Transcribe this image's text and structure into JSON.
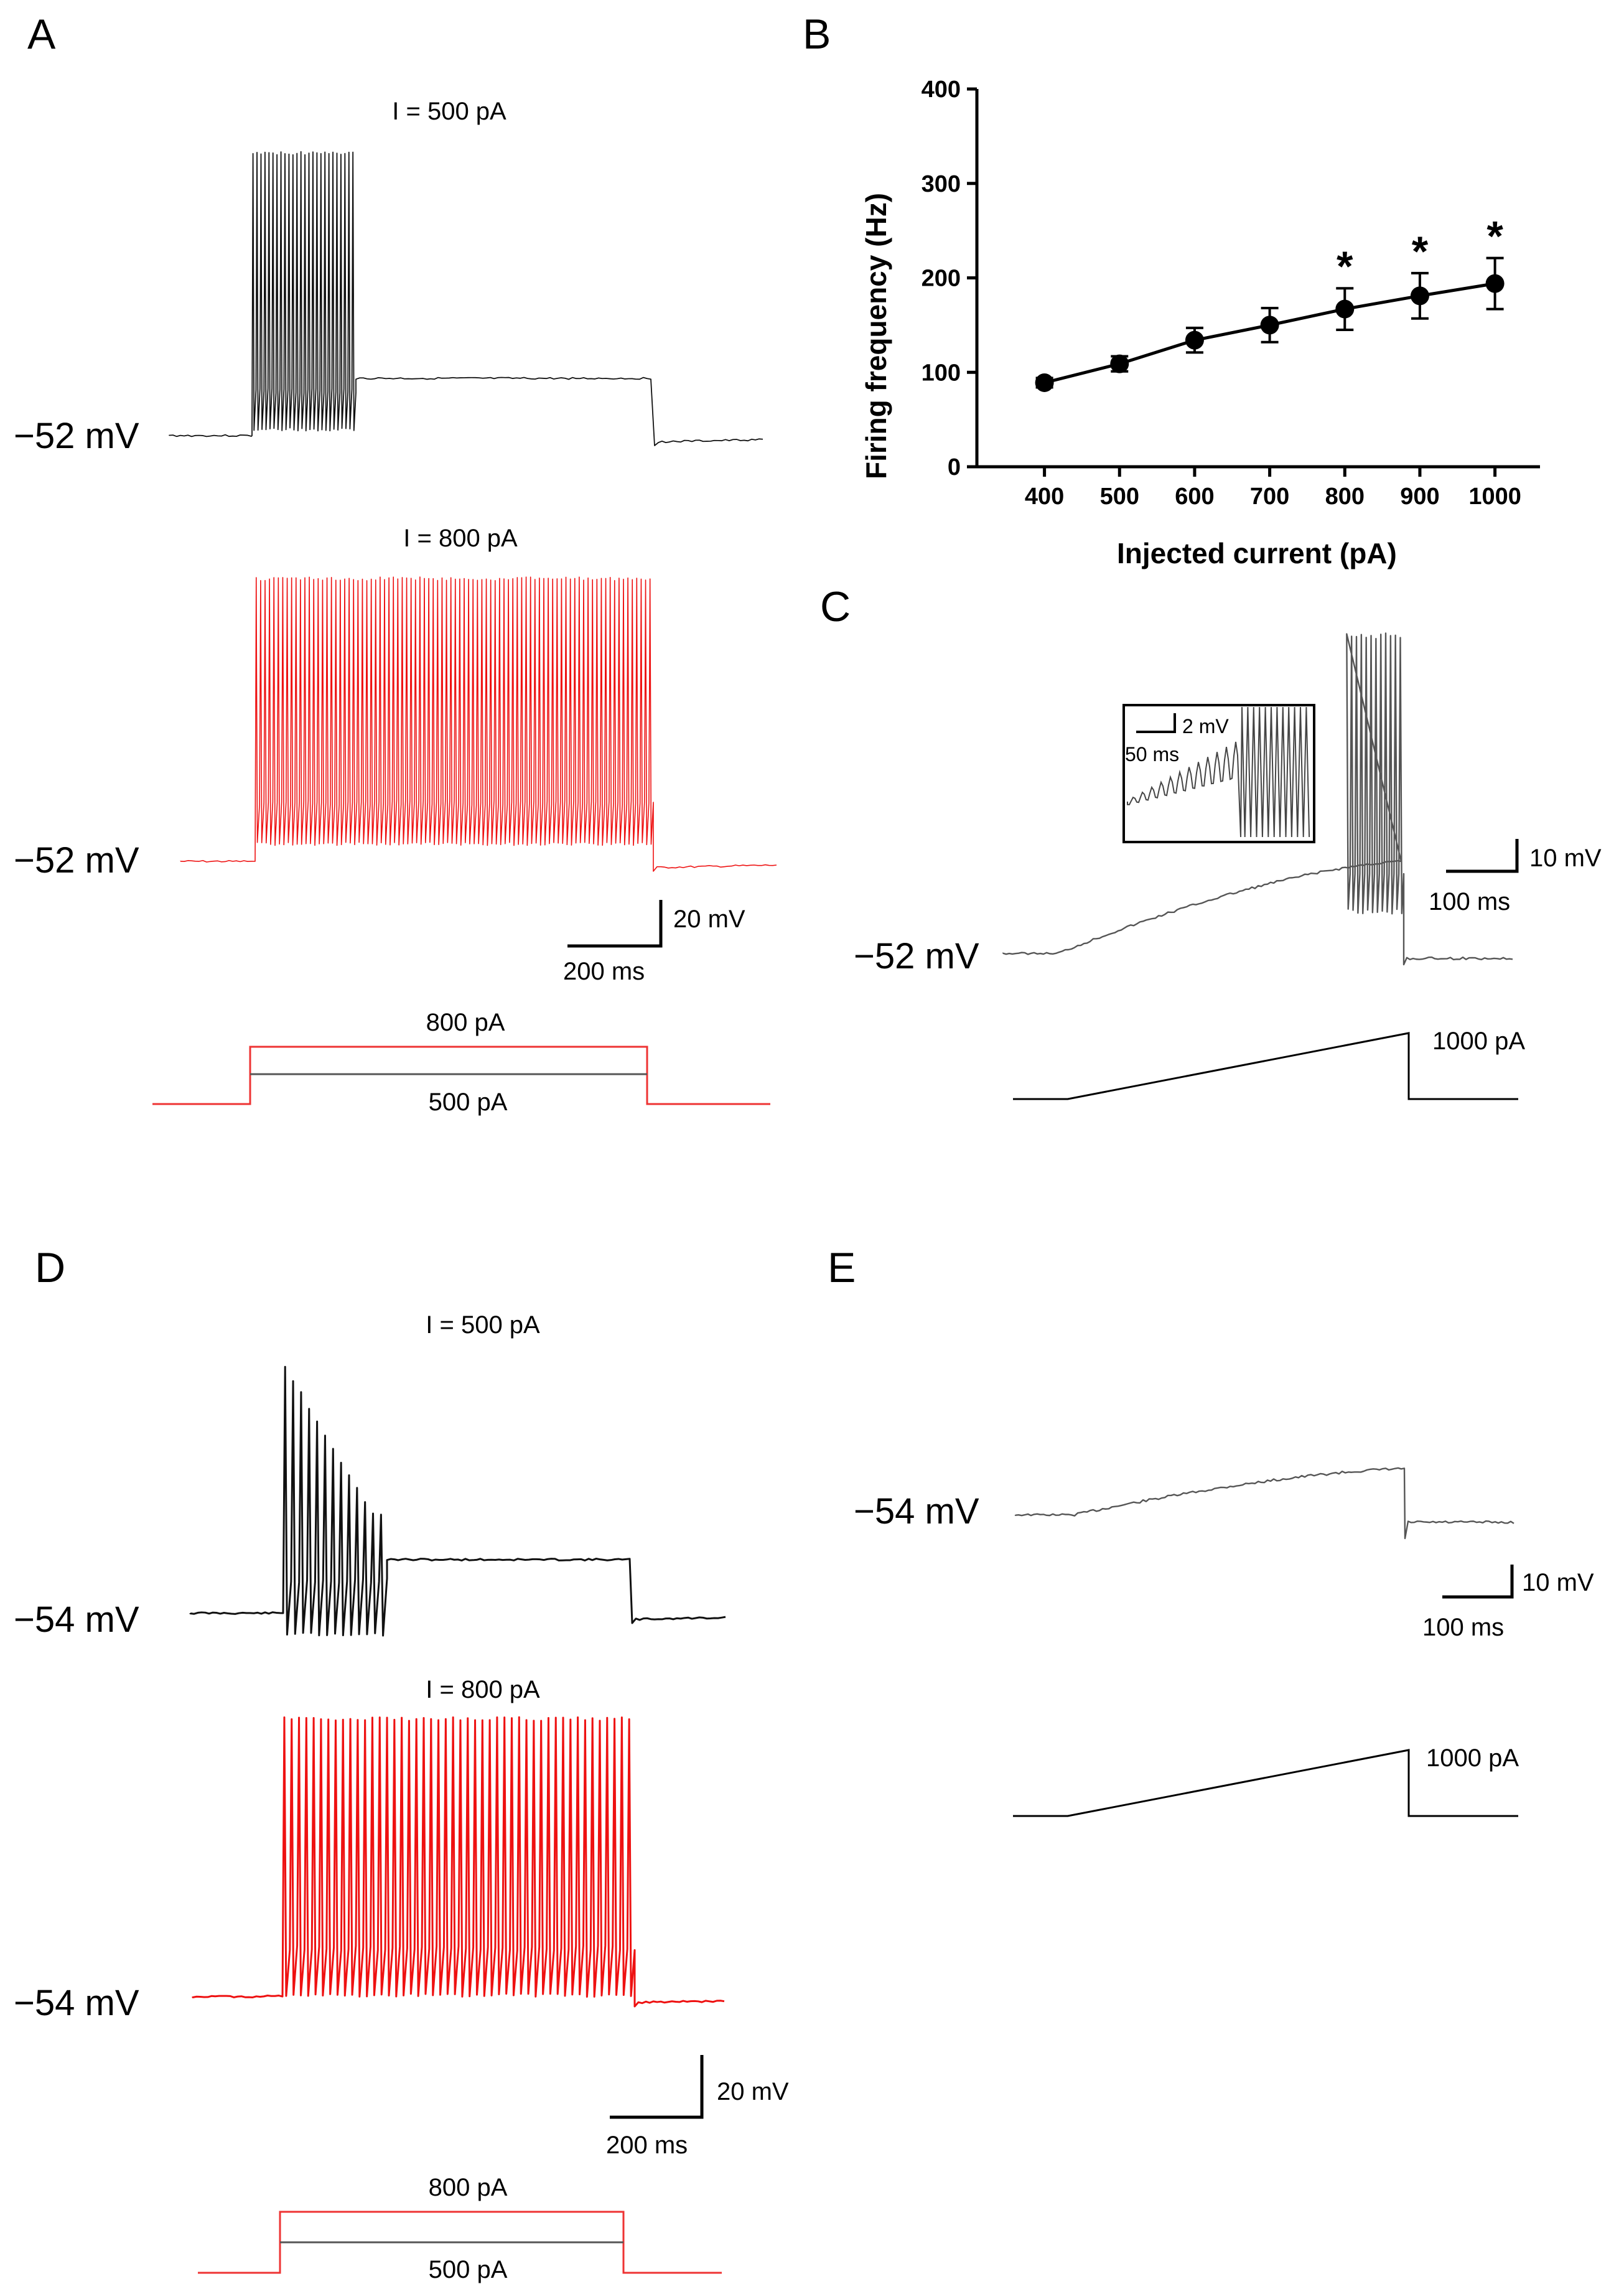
{
  "panels": {
    "A": {
      "letter": "A",
      "top_label": "I = 500 pA",
      "bottom_label": "I = 800 pA",
      "vm_top": "−52 mV",
      "vm_bottom": "−52 mV",
      "scale_v": "20 mV",
      "scale_t": "200 ms",
      "step_high": "800 pA",
      "step_low": "500 pA"
    },
    "B": {
      "letter": "B"
    },
    "C": {
      "letter": "C",
      "vm": "−52 mV",
      "scale_v": "10 mV",
      "scale_t": "100 ms",
      "inset_scale_v": "2 mV",
      "inset_scale_t": "50 ms",
      "ramp_label": "1000 pA"
    },
    "D": {
      "letter": "D",
      "top_label": "I = 500 pA",
      "bottom_label": "I = 800 pA",
      "vm_top": "−54 mV",
      "vm_bottom": "−54 mV",
      "scale_v": "20 mV",
      "scale_t": "200 ms",
      "step_high": "800 pA",
      "step_low": "500 pA"
    },
    "E": {
      "letter": "E",
      "vm": "−54 mV",
      "scale_v": "10 mV",
      "scale_t": "100 ms",
      "ramp_label": "1000 pA"
    }
  },
  "chart_data": {
    "type": "line",
    "xlabel": "Injected current (pA)",
    "ylabel": "Firing frequency (Hz)",
    "x": [
      400,
      500,
      600,
      700,
      800,
      900,
      1000
    ],
    "y": [
      89,
      109,
      134,
      150,
      167,
      181,
      194
    ],
    "error": [
      5,
      8,
      13,
      18,
      22,
      24,
      27
    ],
    "significance": [
      "",
      "",
      "",
      "",
      "*",
      "*",
      "*"
    ],
    "x_ticks": [
      "400",
      "500",
      "600",
      "700",
      "800",
      "900",
      "1000"
    ],
    "y_ticks": [
      "0",
      "100",
      "200",
      "300",
      "400"
    ],
    "xlim": [
      310,
      1060
    ],
    "ylim": [
      0,
      400
    ]
  },
  "colors": {
    "black_trace": "#111111",
    "gray_trace": "#555555",
    "red_trace": "#ee1111"
  }
}
